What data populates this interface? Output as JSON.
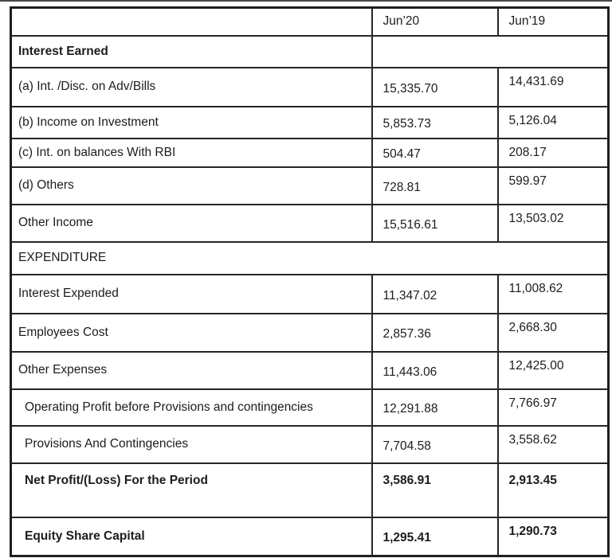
{
  "table": {
    "columns": [
      "",
      "Jun’20",
      "Jun’19"
    ],
    "rows": [
      {
        "label": "Interest Earned",
        "bold": true,
        "merged_value_cell": true
      },
      {
        "label": "(a) Int. /Disc. on Adv/Bills",
        "values": [
          "15,335.70",
          "14,431.69"
        ]
      },
      {
        "label": "(b) Income on Investment",
        "values": [
          "5,853.73",
          "5,126.04"
        ]
      },
      {
        "label": "(c) Int. on balances With RBI",
        "values": [
          "504.47",
          "208.17"
        ]
      },
      {
        "label": "(d) Others",
        "values": [
          "728.81",
          "599.97"
        ]
      },
      {
        "label": "Other Income",
        "values": [
          "15,516.61",
          "13,503.02"
        ]
      },
      {
        "label": "EXPENDITURE",
        "full_width": true
      },
      {
        "label": "Interest Expended",
        "values": [
          "11,347.02",
          "11,008.62"
        ]
      },
      {
        "label": "Employees Cost",
        "values": [
          "2,857.36",
          "2,668.30"
        ]
      },
      {
        "label": "Other Expenses",
        "values": [
          "11,443.06",
          "12,425.00"
        ]
      },
      {
        "label": "Operating Profit before Provisions and contingencies",
        "values": [
          "12,291.88",
          "7,766.97"
        ],
        "indent": true
      },
      {
        "label": "Provisions And Contingencies",
        "values": [
          "7,704.58",
          "3,558.62"
        ],
        "indent": true
      },
      {
        "label": "Net Profit/(Loss) For the Period",
        "values": [
          "3,586.91",
          "2,913.45"
        ],
        "bold": true,
        "indent": true
      },
      {
        "label": "Equity Share Capital",
        "values": [
          "1,295.41",
          "1,290.73"
        ],
        "bold": true,
        "indent": true
      }
    ]
  },
  "colors": {
    "border": "#262626",
    "outer_border": "#1f1f1f",
    "text": "#1c1c1c",
    "background": "#ffffff",
    "scan_line": "#474747"
  }
}
